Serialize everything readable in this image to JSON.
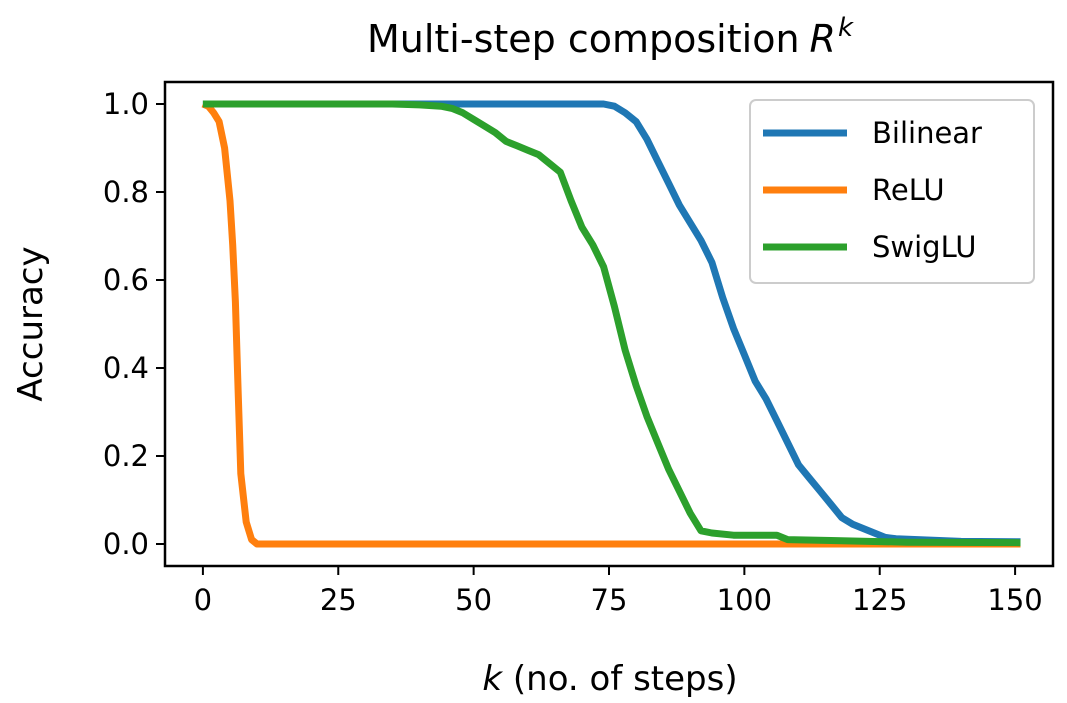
{
  "chart_data": {
    "type": "line",
    "title": "Multi-step composition",
    "title_math": "R",
    "title_sup": "k",
    "xlabel_var": "k",
    "xlabel_rest": " (no. of steps)",
    "ylabel": "Accuracy",
    "xlim": [
      -7,
      157
    ],
    "ylim": [
      -0.05,
      1.05
    ],
    "xticks": [
      0,
      25,
      50,
      75,
      100,
      125,
      150
    ],
    "xtick_labels": [
      "0",
      "25",
      "50",
      "75",
      "100",
      "125",
      "150"
    ],
    "yticks": [
      0.0,
      0.2,
      0.4,
      0.6,
      0.8,
      1.0
    ],
    "ytick_labels": [
      "0.0",
      "0.2",
      "0.4",
      "0.6",
      "0.8",
      "1.0"
    ],
    "grid": false,
    "legend_position": "top-right",
    "series": [
      {
        "name": "Bilinear",
        "color": "#1f77b4",
        "points": [
          [
            0,
            1.0
          ],
          [
            70,
            1.0
          ],
          [
            74,
            1.0
          ],
          [
            76,
            0.995
          ],
          [
            78,
            0.98
          ],
          [
            80,
            0.96
          ],
          [
            82,
            0.92
          ],
          [
            84,
            0.87
          ],
          [
            86,
            0.82
          ],
          [
            88,
            0.77
          ],
          [
            90,
            0.73
          ],
          [
            92,
            0.69
          ],
          [
            94,
            0.64
          ],
          [
            96,
            0.56
          ],
          [
            98,
            0.49
          ],
          [
            100,
            0.43
          ],
          [
            102,
            0.37
          ],
          [
            104,
            0.33
          ],
          [
            106,
            0.28
          ],
          [
            108,
            0.23
          ],
          [
            110,
            0.18
          ],
          [
            112,
            0.15
          ],
          [
            114,
            0.12
          ],
          [
            116,
            0.09
          ],
          [
            118,
            0.06
          ],
          [
            120,
            0.045
          ],
          [
            122,
            0.035
          ],
          [
            124,
            0.025
          ],
          [
            126,
            0.015
          ],
          [
            128,
            0.012
          ],
          [
            132,
            0.01
          ],
          [
            140,
            0.006
          ],
          [
            151,
            0.005
          ]
        ]
      },
      {
        "name": "ReLU",
        "color": "#ff7f0e",
        "points": [
          [
            0,
            1.0
          ],
          [
            1,
            0.995
          ],
          [
            2,
            0.98
          ],
          [
            3,
            0.96
          ],
          [
            4,
            0.9
          ],
          [
            5,
            0.78
          ],
          [
            5.5,
            0.68
          ],
          [
            6,
            0.55
          ],
          [
            6.5,
            0.35
          ],
          [
            7,
            0.16
          ],
          [
            8,
            0.05
          ],
          [
            9,
            0.01
          ],
          [
            10,
            0.0
          ],
          [
            151,
            0.0
          ]
        ]
      },
      {
        "name": "SwigLU",
        "color": "#2ca02c",
        "points": [
          [
            0,
            1.0
          ],
          [
            35,
            1.0
          ],
          [
            40,
            0.998
          ],
          [
            44,
            0.995
          ],
          [
            46,
            0.99
          ],
          [
            48,
            0.98
          ],
          [
            50,
            0.965
          ],
          [
            52,
            0.95
          ],
          [
            54,
            0.935
          ],
          [
            56,
            0.915
          ],
          [
            58,
            0.905
          ],
          [
            60,
            0.895
          ],
          [
            62,
            0.885
          ],
          [
            64,
            0.865
          ],
          [
            66,
            0.845
          ],
          [
            68,
            0.78
          ],
          [
            70,
            0.72
          ],
          [
            72,
            0.68
          ],
          [
            74,
            0.63
          ],
          [
            76,
            0.54
          ],
          [
            78,
            0.44
          ],
          [
            80,
            0.36
          ],
          [
            82,
            0.29
          ],
          [
            84,
            0.23
          ],
          [
            86,
            0.17
          ],
          [
            88,
            0.12
          ],
          [
            90,
            0.07
          ],
          [
            92,
            0.03
          ],
          [
            94,
            0.025
          ],
          [
            98,
            0.02
          ],
          [
            106,
            0.02
          ],
          [
            108,
            0.01
          ],
          [
            116,
            0.008
          ],
          [
            130,
            0.004
          ],
          [
            151,
            0.003
          ]
        ]
      }
    ]
  }
}
